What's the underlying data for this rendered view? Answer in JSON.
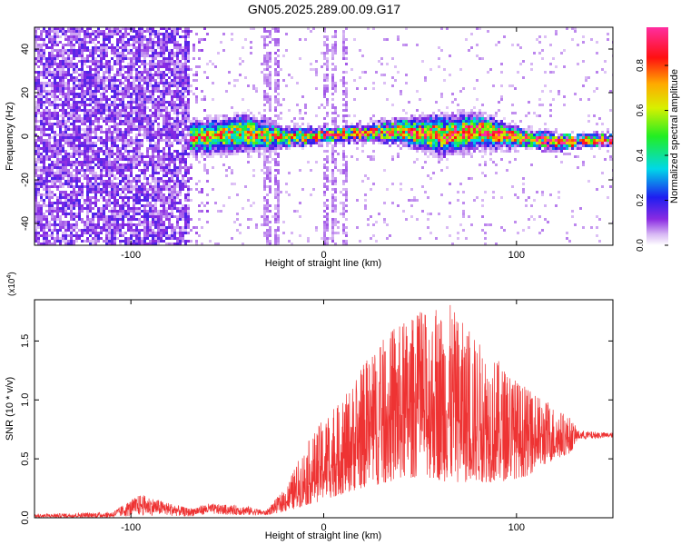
{
  "page": {
    "title": "GN05.2025.289.00.09.G17"
  },
  "chart_data": [
    {
      "type": "heatmap",
      "title": "",
      "xlabel": "Height of straight line (km)",
      "ylabel": "Frequency (Hz)",
      "xlim": [
        -150,
        150
      ],
      "ylim": [
        -50,
        50
      ],
      "xticks": [
        -100,
        0,
        100
      ],
      "yticks": [
        -40,
        -20,
        0,
        20,
        40
      ],
      "colorbar": {
        "label": "Normalized spectral amplitude",
        "range": [
          0,
          0.97
        ],
        "ticks": [
          0.0,
          0.2,
          0.4,
          0.6,
          0.8
        ],
        "colormap": "rainbow (white-purple-blue-cyan-green-yellow-red-magenta)"
      },
      "structure": {
        "noise_region_x": [
          -150,
          -70
        ],
        "ridge_region_x": [
          -70,
          150
        ],
        "ridge_center_freq": [
          {
            "x": -70,
            "f": 0
          },
          {
            "x": -40,
            "f": 2
          },
          {
            "x": -20,
            "f": 0
          },
          {
            "x": 0,
            "f": 1
          },
          {
            "x": 20,
            "f": 2
          },
          {
            "x": 40,
            "f": 3
          },
          {
            "x": 60,
            "f": 1
          },
          {
            "x": 80,
            "f": 3
          },
          {
            "x": 100,
            "f": 0
          },
          {
            "x": 120,
            "f": -2
          },
          {
            "x": 150,
            "f": -1
          }
        ],
        "ridge_halfwidth_hz": [
          {
            "x": -70,
            "w": 6
          },
          {
            "x": -40,
            "w": 7
          },
          {
            "x": -20,
            "w": 4
          },
          {
            "x": 0,
            "w": 3
          },
          {
            "x": 20,
            "w": 3
          },
          {
            "x": 40,
            "w": 5
          },
          {
            "x": 60,
            "w": 8
          },
          {
            "x": 80,
            "w": 7
          },
          {
            "x": 100,
            "w": 4
          },
          {
            "x": 120,
            "w": 3
          },
          {
            "x": 150,
            "w": 2
          }
        ],
        "vertical_streaks_x": [
          -30,
          -25,
          0,
          5,
          10
        ]
      }
    },
    {
      "type": "line",
      "title": "",
      "xlabel": "Height of straight line (km)",
      "ylabel": "SNR (10 * v/v)",
      "y_multiplier_label": "(x10",
      "y_multiplier_exp": "4",
      "y_multiplier_close": ")",
      "xlim": [
        -150,
        150
      ],
      "ylim": [
        0,
        1.85
      ],
      "xticks": [
        -100,
        0,
        100
      ],
      "yticks": [
        "0.0",
        "0.5",
        "1.0",
        "1.5"
      ],
      "ytick_values": [
        0,
        0.5,
        1.0,
        1.5
      ],
      "series": [
        {
          "color": "#ee3333",
          "envelope": [
            {
              "x": -150,
              "lo": 0.0,
              "hi": 0.03
            },
            {
              "x": -110,
              "lo": 0.0,
              "hi": 0.05
            },
            {
              "x": -95,
              "lo": 0.02,
              "hi": 0.2
            },
            {
              "x": -85,
              "lo": 0.02,
              "hi": 0.15
            },
            {
              "x": -70,
              "lo": 0.01,
              "hi": 0.08
            },
            {
              "x": -60,
              "lo": 0.03,
              "hi": 0.12
            },
            {
              "x": -40,
              "lo": 0.02,
              "hi": 0.1
            },
            {
              "x": -30,
              "lo": 0.02,
              "hi": 0.06
            },
            {
              "x": -20,
              "lo": 0.05,
              "hi": 0.25
            },
            {
              "x": -10,
              "lo": 0.1,
              "hi": 0.6
            },
            {
              "x": 0,
              "lo": 0.15,
              "hi": 0.85
            },
            {
              "x": 10,
              "lo": 0.2,
              "hi": 1.0
            },
            {
              "x": 20,
              "lo": 0.25,
              "hi": 1.3
            },
            {
              "x": 35,
              "lo": 0.3,
              "hi": 1.6
            },
            {
              "x": 50,
              "lo": 0.35,
              "hi": 1.75
            },
            {
              "x": 65,
              "lo": 0.3,
              "hi": 1.82
            },
            {
              "x": 75,
              "lo": 0.3,
              "hi": 1.6
            },
            {
              "x": 90,
              "lo": 0.3,
              "hi": 1.35
            },
            {
              "x": 105,
              "lo": 0.35,
              "hi": 1.1
            },
            {
              "x": 115,
              "lo": 0.45,
              "hi": 1.0
            },
            {
              "x": 128,
              "lo": 0.55,
              "hi": 0.85
            },
            {
              "x": 132,
              "lo": 0.66,
              "hi": 0.74
            },
            {
              "x": 150,
              "lo": 0.68,
              "hi": 0.72
            }
          ]
        }
      ]
    }
  ]
}
